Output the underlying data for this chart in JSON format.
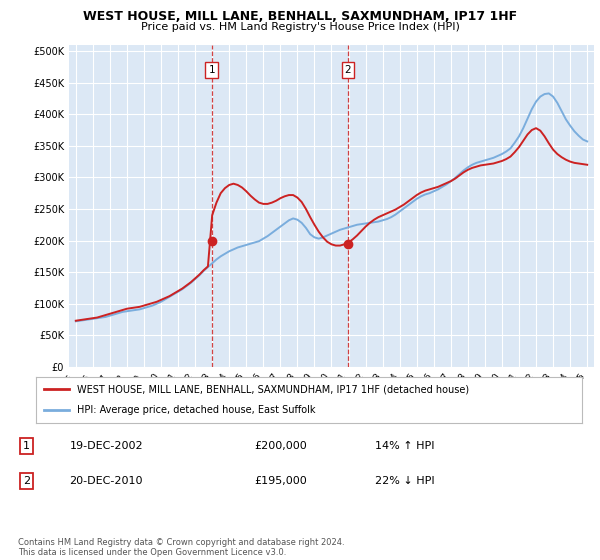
{
  "title": "WEST HOUSE, MILL LANE, BENHALL, SAXMUNDHAM, IP17 1HF",
  "subtitle": "Price paid vs. HM Land Registry's House Price Index (HPI)",
  "title_fontsize": 9,
  "subtitle_fontsize": 8,
  "background_color": "#ffffff",
  "plot_bg_color": "#dce8f5",
  "grid_color": "#ffffff",
  "ylim": [
    0,
    500000
  ],
  "yticks": [
    0,
    50000,
    100000,
    150000,
    200000,
    250000,
    300000,
    350000,
    400000,
    450000,
    500000
  ],
  "ytick_labels": [
    "£0",
    "£50K",
    "£100K",
    "£150K",
    "£200K",
    "£250K",
    "£300K",
    "£350K",
    "£400K",
    "£450K",
    "£500K"
  ],
  "sale1": {
    "year": 2002.97,
    "price": 200000,
    "label": "1"
  },
  "sale2": {
    "year": 2010.97,
    "price": 195000,
    "label": "2"
  },
  "legend_entry1": "WEST HOUSE, MILL LANE, BENHALL, SAXMUNDHAM, IP17 1HF (detached house)",
  "legend_entry2": "HPI: Average price, detached house, East Suffolk",
  "table_row1": [
    "1",
    "19-DEC-2002",
    "£200,000",
    "14% ↑ HPI"
  ],
  "table_row2": [
    "2",
    "20-DEC-2010",
    "£195,000",
    "22% ↓ HPI"
  ],
  "footer": "Contains HM Land Registry data © Crown copyright and database right 2024.\nThis data is licensed under the Open Government Licence v3.0.",
  "hpi_color": "#7aaddd",
  "price_color": "#cc2222",
  "sale_marker_color": "#cc2222",
  "vline_color": "#cc2222",
  "years": [
    1995.0,
    1995.25,
    1995.5,
    1995.75,
    1996.0,
    1996.25,
    1996.5,
    1996.75,
    1997.0,
    1997.25,
    1997.5,
    1997.75,
    1998.0,
    1998.25,
    1998.5,
    1998.75,
    1999.0,
    1999.25,
    1999.5,
    1999.75,
    2000.0,
    2000.25,
    2000.5,
    2000.75,
    2001.0,
    2001.25,
    2001.5,
    2001.75,
    2002.0,
    2002.25,
    2002.5,
    2002.75,
    2003.0,
    2003.25,
    2003.5,
    2003.75,
    2004.0,
    2004.25,
    2004.5,
    2004.75,
    2005.0,
    2005.25,
    2005.5,
    2005.75,
    2006.0,
    2006.25,
    2006.5,
    2006.75,
    2007.0,
    2007.25,
    2007.5,
    2007.75,
    2008.0,
    2008.25,
    2008.5,
    2008.75,
    2009.0,
    2009.25,
    2009.5,
    2009.75,
    2010.0,
    2010.25,
    2010.5,
    2010.75,
    2011.0,
    2011.25,
    2011.5,
    2011.75,
    2012.0,
    2012.25,
    2012.5,
    2012.75,
    2013.0,
    2013.25,
    2013.5,
    2013.75,
    2014.0,
    2014.25,
    2014.5,
    2014.75,
    2015.0,
    2015.25,
    2015.5,
    2015.75,
    2016.0,
    2016.25,
    2016.5,
    2016.75,
    2017.0,
    2017.25,
    2017.5,
    2017.75,
    2018.0,
    2018.25,
    2018.5,
    2018.75,
    2019.0,
    2019.25,
    2019.5,
    2019.75,
    2020.0,
    2020.25,
    2020.5,
    2020.75,
    2021.0,
    2021.25,
    2021.5,
    2021.75,
    2022.0,
    2022.25,
    2022.5,
    2022.75,
    2023.0,
    2023.25,
    2023.5,
    2023.75,
    2024.0,
    2024.25,
    2024.5,
    2024.75,
    2025.0
  ],
  "hpi_values": [
    72000,
    73000,
    74000,
    75000,
    76000,
    77000,
    78000,
    79000,
    81000,
    83000,
    85000,
    87000,
    88000,
    89000,
    90000,
    91000,
    93000,
    95000,
    97000,
    100000,
    103000,
    107000,
    111000,
    115000,
    119000,
    123000,
    128000,
    133000,
    139000,
    145000,
    152000,
    158000,
    164000,
    170000,
    175000,
    179000,
    183000,
    186000,
    189000,
    191000,
    193000,
    195000,
    197000,
    199000,
    203000,
    207000,
    212000,
    217000,
    222000,
    227000,
    232000,
    235000,
    233000,
    228000,
    220000,
    210000,
    205000,
    203000,
    205000,
    208000,
    211000,
    214000,
    217000,
    219000,
    221000,
    223000,
    225000,
    226000,
    227000,
    228000,
    229000,
    230000,
    232000,
    234000,
    237000,
    241000,
    246000,
    251000,
    256000,
    261000,
    266000,
    270000,
    273000,
    275000,
    278000,
    281000,
    285000,
    289000,
    294000,
    299000,
    305000,
    311000,
    316000,
    320000,
    323000,
    325000,
    327000,
    329000,
    331000,
    334000,
    337000,
    341000,
    346000,
    355000,
    365000,
    378000,
    393000,
    408000,
    420000,
    428000,
    432000,
    433000,
    428000,
    418000,
    405000,
    392000,
    382000,
    373000,
    366000,
    360000,
    357000
  ],
  "price_paid_values": [
    73000,
    74000,
    75000,
    76000,
    77000,
    78000,
    80000,
    82000,
    84000,
    86000,
    88000,
    90000,
    92000,
    93000,
    94000,
    95000,
    97000,
    99000,
    101000,
    103000,
    106000,
    109000,
    112000,
    116000,
    120000,
    124000,
    129000,
    134000,
    140000,
    146000,
    153000,
    159000,
    240000,
    260000,
    275000,
    283000,
    288000,
    290000,
    288000,
    284000,
    278000,
    271000,
    265000,
    260000,
    258000,
    258000,
    260000,
    263000,
    267000,
    270000,
    272000,
    272000,
    268000,
    261000,
    250000,
    237000,
    225000,
    214000,
    205000,
    198000,
    194000,
    192000,
    192000,
    194000,
    197000,
    202000,
    208000,
    215000,
    222000,
    228000,
    233000,
    237000,
    240000,
    243000,
    246000,
    249000,
    253000,
    257000,
    262000,
    267000,
    272000,
    276000,
    279000,
    281000,
    283000,
    285000,
    288000,
    291000,
    294000,
    298000,
    303000,
    308000,
    312000,
    315000,
    317000,
    319000,
    320000,
    321000,
    322000,
    324000,
    326000,
    329000,
    333000,
    340000,
    348000,
    358000,
    368000,
    375000,
    378000,
    374000,
    365000,
    354000,
    344000,
    337000,
    332000,
    328000,
    325000,
    323000,
    322000,
    321000,
    320000
  ]
}
